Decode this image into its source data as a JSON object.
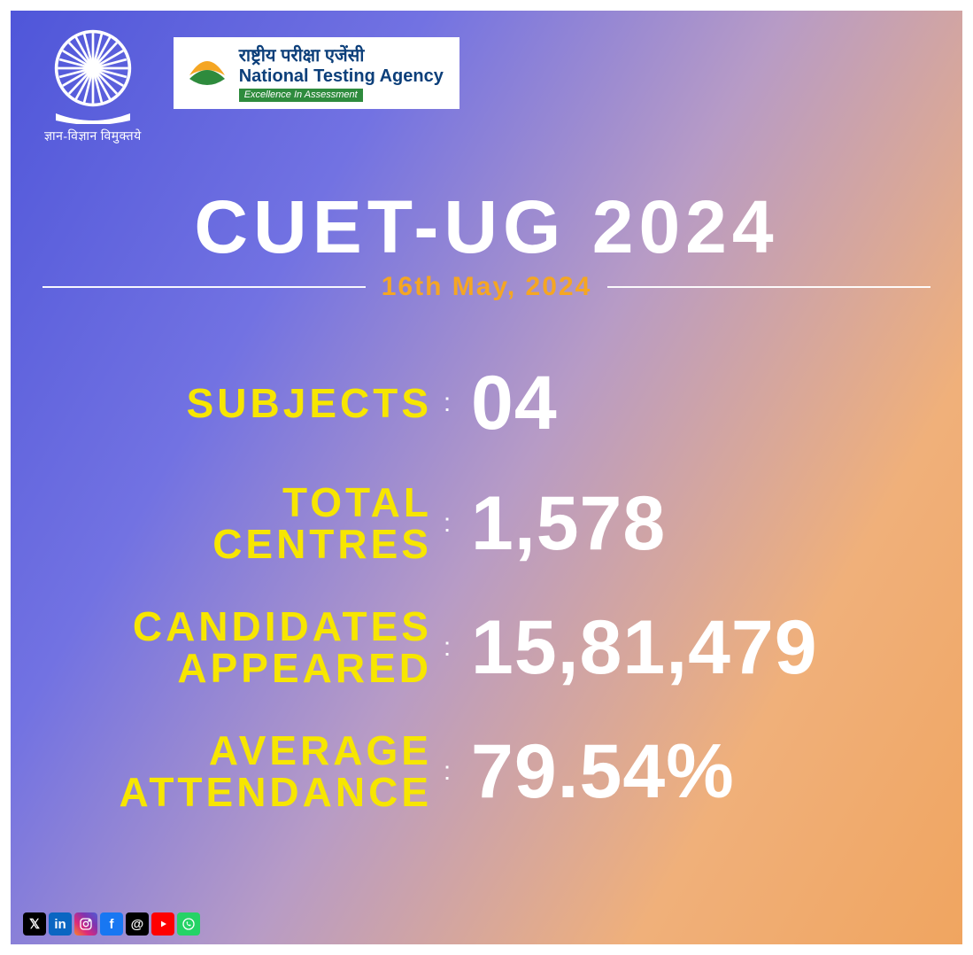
{
  "header": {
    "ugc_caption": "ज्ञान-विज्ञान विमुक्तये",
    "nta_hindi": "राष्ट्रीय परीक्षा एजेंसी",
    "nta_english": "National Testing Agency",
    "nta_tagline": "Excellence In Assessment"
  },
  "title": "CUET-UG 2024",
  "date": "16th May, 2024",
  "date_color": "#f5a623",
  "label_color": "#f7e600",
  "value_color": "#ffffff",
  "title_color": "#ffffff",
  "title_fontsize": 84,
  "label_fontsize": 46,
  "value_fontsize": 86,
  "background_gradient": [
    "#4f56d9",
    "#7272e2",
    "#b79bc6",
    "#f0b07a",
    "#f0a560"
  ],
  "stats": [
    {
      "label": "SUBJECTS",
      "value": "04"
    },
    {
      "label": "TOTAL\nCENTRES",
      "value": "1,578"
    },
    {
      "label": "CANDIDATES\nAPPEARED",
      "value": "15,81,479"
    },
    {
      "label": "AVERAGE\nATTENDANCE",
      "value": "79.54%"
    }
  ],
  "social": {
    "x": "X",
    "linkedin": "in",
    "instagram": "instagram-icon",
    "facebook": "f",
    "threads": "@",
    "youtube": "▶",
    "whatsapp": "whatsapp-icon"
  },
  "social_colors": {
    "x": "#000000",
    "linkedin": "#0a66c2",
    "instagram_gradient": [
      "#f58529",
      "#dd2a7b",
      "#8134af",
      "#515bd4"
    ],
    "facebook": "#1877f2",
    "threads": "#000000",
    "youtube": "#ff0000",
    "whatsapp": "#25d366"
  }
}
